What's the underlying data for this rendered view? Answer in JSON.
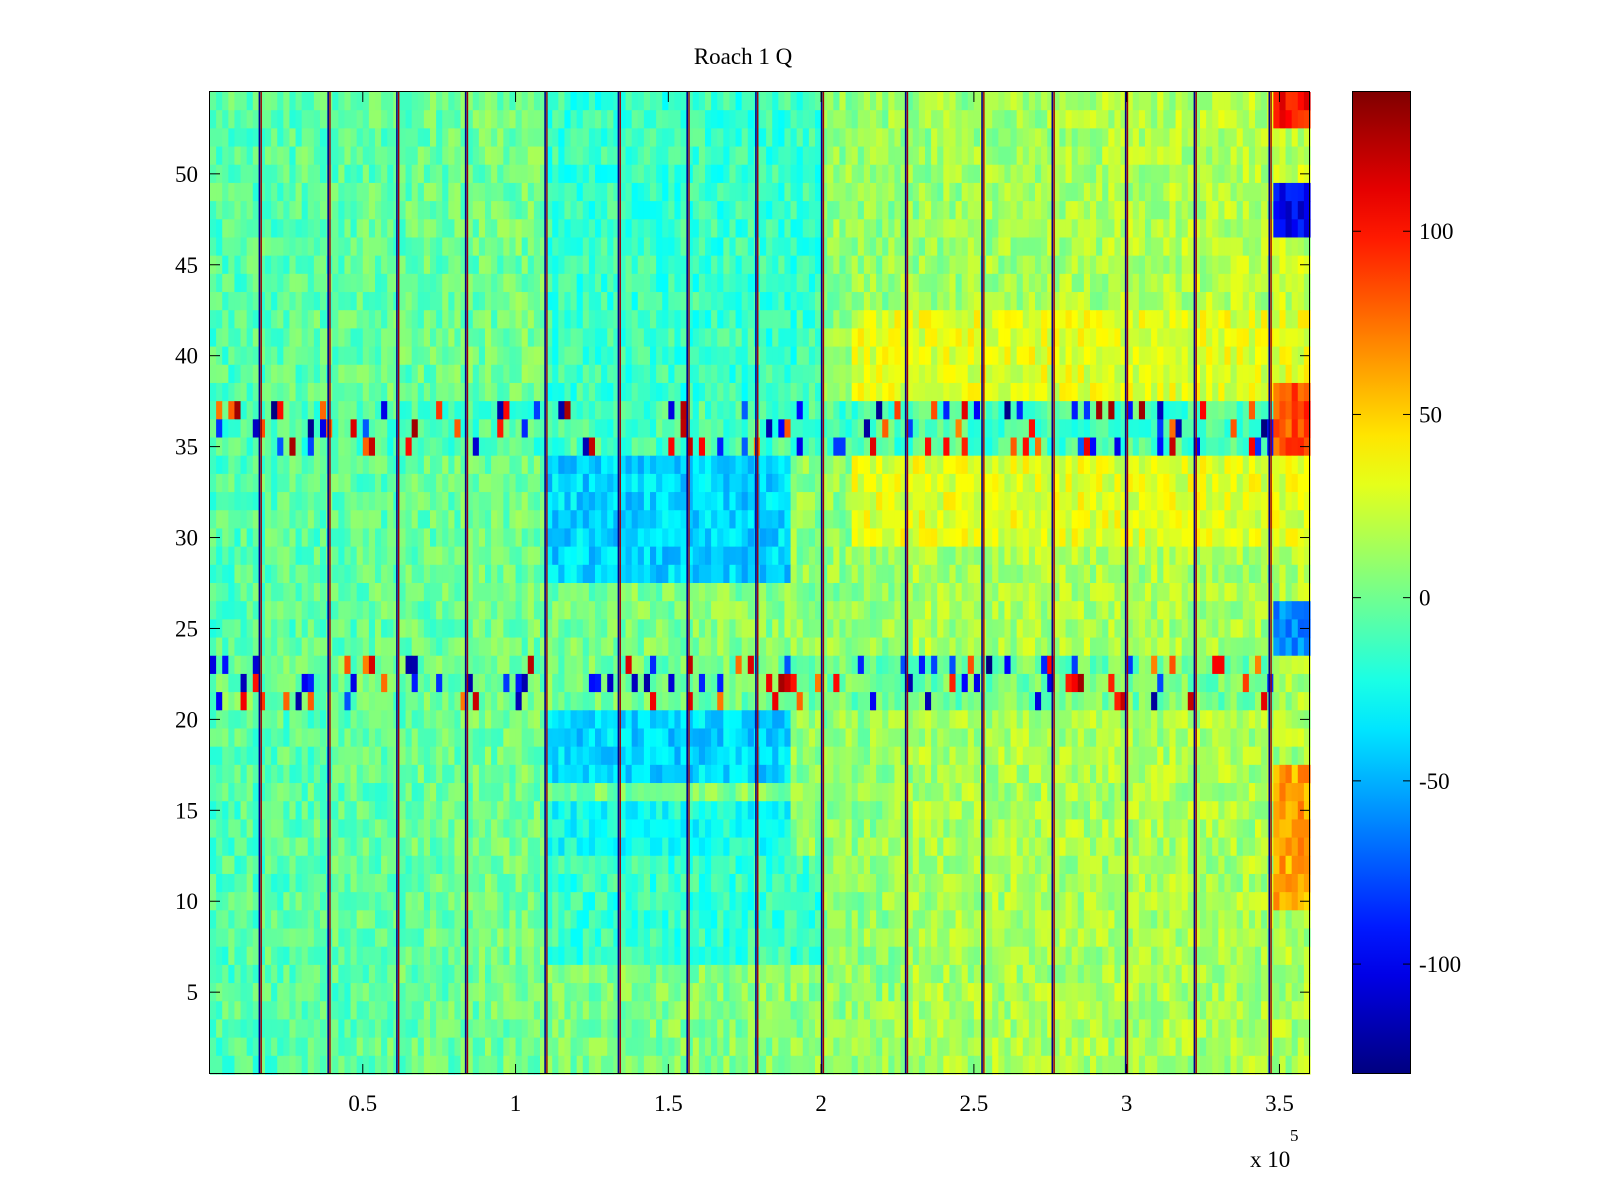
{
  "chart_data": {
    "type": "heatmap",
    "title": "Roach 1 Q",
    "xlabel": "",
    "ylabel": "",
    "x_exponent_label": "x 10",
    "x_exponent_power": "5",
    "xlim": [
      0,
      3.6
    ],
    "ylim": [
      0.5,
      54.5
    ],
    "xticks": [
      0.5,
      1,
      1.5,
      2,
      2.5,
      3,
      3.5
    ],
    "xtick_labels": [
      "0.5",
      "1",
      "1.5",
      "2",
      "2.5",
      "3",
      "3.5"
    ],
    "yticks": [
      5,
      10,
      15,
      20,
      25,
      30,
      35,
      40,
      45,
      50
    ],
    "ytick_labels": [
      "5",
      "10",
      "15",
      "20",
      "25",
      "30",
      "35",
      "40",
      "45",
      "50"
    ],
    "rows": 54,
    "colormap": "jet",
    "color_range": [
      -130,
      138
    ],
    "colorbar_ticks": [
      -100,
      -50,
      0,
      50,
      100
    ],
    "colorbar_tick_labels": [
      "-100",
      "-50",
      "0",
      "50",
      "100"
    ],
    "colorbar_location": "right",
    "vertical_stripes_x": [
      0.165,
      0.39,
      0.615,
      0.84,
      1.1,
      1.34,
      1.565,
      1.79,
      2.005,
      2.28,
      2.53,
      2.76,
      3.0,
      3.225,
      3.47
    ],
    "regions": [
      {
        "x": [
          1.1,
          1.9
        ],
        "y": [
          28,
          35
        ],
        "mean": -40
      },
      {
        "x": [
          1.1,
          1.9
        ],
        "y": [
          17,
          21
        ],
        "mean": -40
      },
      {
        "x": [
          1.1,
          1.9
        ],
        "y": [
          13,
          15
        ],
        "mean": -25
      },
      {
        "x": [
          1.1,
          2.0
        ],
        "y": [
          7,
          12
        ],
        "mean": -15
      },
      {
        "x": [
          1.1,
          2.0
        ],
        "y": [
          37,
          54
        ],
        "mean": -15
      },
      {
        "x": [
          2.1,
          3.6
        ],
        "y": [
          30,
          42
        ],
        "mean": 30
      },
      {
        "x": [
          2.3,
          3.6
        ],
        "y": [
          1,
          29
        ],
        "mean": 15
      },
      {
        "x": [
          3.48,
          3.6
        ],
        "y": [
          47,
          49
        ],
        "mean": -100
      },
      {
        "x": [
          3.48,
          3.6
        ],
        "y": [
          24,
          26
        ],
        "mean": -60
      },
      {
        "x": [
          3.48,
          3.6
        ],
        "y": [
          35,
          38
        ],
        "mean": 85
      },
      {
        "x": [
          3.48,
          3.6
        ],
        "y": [
          53,
          54
        ],
        "mean": 100
      },
      {
        "x": [
          3.48,
          3.6
        ],
        "y": [
          10,
          17
        ],
        "mean": 60
      },
      {
        "x": [
          0,
          3.47
        ],
        "y": [
          21,
          23
        ],
        "mean": 0,
        "spiky": true
      },
      {
        "x": [
          0,
          3.47
        ],
        "y": [
          35,
          37
        ],
        "mean": -10,
        "spiky": true
      }
    ]
  }
}
